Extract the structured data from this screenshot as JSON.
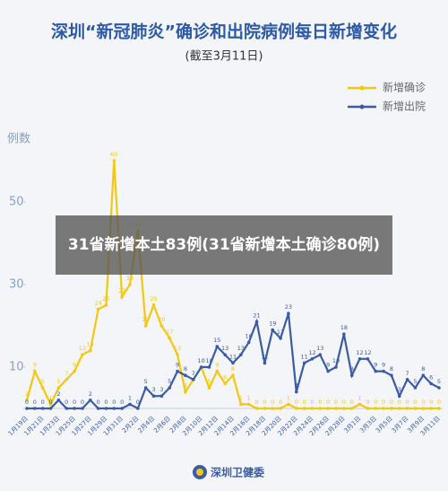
{
  "chart_data": {
    "type": "line",
    "title": "深圳“新冠肺炎”确诊和出院病例每日新增变化",
    "subtitle": "(截至3月11日)",
    "y_label": "例数",
    "annotation": "31省新增本土83例(31省新增本土确诊80例)",
    "source": "深圳卫健委",
    "categories": [
      "1月19日",
      null,
      "1月21日",
      null,
      "1月23日",
      null,
      "1月25日",
      null,
      "1月27日",
      null,
      "1月29日",
      null,
      "1月31日",
      null,
      "2月2日",
      null,
      "2月4日",
      null,
      "2月6日",
      null,
      "2月8日",
      null,
      "2月10日",
      null,
      "2月12日",
      null,
      "2月14日",
      null,
      "2月16日",
      null,
      "2月18日",
      null,
      "2月20日",
      null,
      "2月22日",
      null,
      "2月24日",
      null,
      "2月26日",
      null,
      "2月28日",
      null,
      "3月1日",
      null,
      "3月3日",
      null,
      "3月5日",
      null,
      "3月7日",
      null,
      "3月9日",
      null,
      "3月11日"
    ],
    "series": [
      {
        "name": "新增确诊",
        "color": "#f2c811",
        "values": [
          2,
          9,
          5,
          1,
          5,
          7,
          9,
          13,
          14,
          24,
          25,
          60,
          27,
          30,
          43,
          20,
          25,
          20,
          17,
          13,
          4,
          7,
          10,
          5,
          9,
          6,
          8,
          1,
          1,
          0,
          0,
          0,
          0,
          1,
          0,
          0,
          0,
          0,
          0,
          0,
          0,
          0,
          1,
          0,
          0,
          0,
          0,
          0,
          0,
          0,
          0,
          0,
          0
        ]
      },
      {
        "name": "新增出院",
        "color": "#3b5ba5",
        "values": [
          0,
          0,
          0,
          0,
          2,
          0,
          0,
          0,
          2,
          0,
          0,
          0,
          0,
          1,
          0,
          5,
          3,
          3,
          5,
          9,
          8,
          7,
          10,
          10,
          15,
          13,
          11,
          13,
          16,
          21,
          11,
          19,
          17,
          23,
          4,
          11,
          12,
          13,
          9,
          10,
          18,
          8,
          12,
          12,
          9,
          9,
          8,
          3,
          7,
          5,
          8,
          6,
          5
        ]
      }
    ],
    "ylim": [
      0,
      60
    ],
    "yticks": [
      10,
      30,
      50
    ],
    "legend": "top-right"
  }
}
